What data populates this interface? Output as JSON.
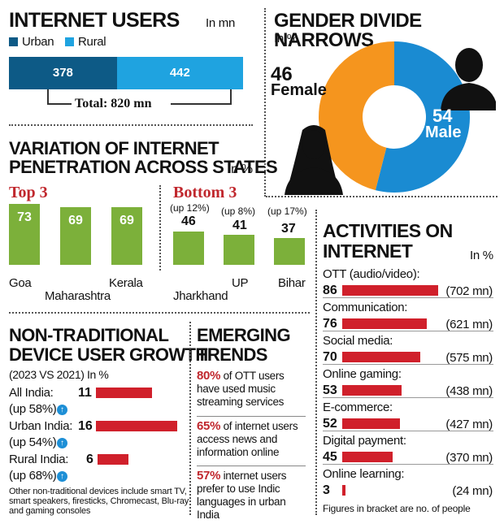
{
  "colors": {
    "urban": "#0d5a86",
    "rural": "#1fa3e0",
    "female": "#f5951e",
    "male": "#1a8bd2",
    "green": "#7cb03a",
    "red": "#d0202b",
    "title_red": "#c0272d"
  },
  "internet_users": {
    "title": "INTERNET USERS",
    "unit": "In mn",
    "legend_urban": "Urban",
    "legend_rural": "Rural",
    "urban": "378",
    "rural": "442",
    "total": "Total: 820 mn"
  },
  "gender": {
    "title": "GENDER DIVIDE NARROWS",
    "unit": "In %",
    "female_value": "46",
    "female_label": "Female",
    "male_value": "54",
    "male_label": "Male"
  },
  "states": {
    "title_line1": "VARIATION OF INTERNET",
    "title_line2": "PENETRATION ACROSS STATES",
    "unit": "In %",
    "top_title": "Top 3",
    "bottom_title": "Bottom 3",
    "top": [
      {
        "name": "Goa",
        "value": "73"
      },
      {
        "name": "Maharashtra",
        "value": "69"
      },
      {
        "name": "Kerala",
        "value": "69"
      }
    ],
    "bottom": [
      {
        "name": "Jharkhand",
        "value": "46",
        "change": "(up 12%)"
      },
      {
        "name": "UP",
        "value": "41",
        "change": "(up 8%)"
      },
      {
        "name": "Bihar",
        "value": "37",
        "change": "(up 17%)"
      }
    ]
  },
  "devices": {
    "title_line1": "NON-TRADITIONAL",
    "title_line2": "DEVICE USER GROWTH",
    "subtitle": "(2023 VS 2021) In %",
    "rows": [
      {
        "label": "All India:",
        "value": "11",
        "change": "(up 58%)"
      },
      {
        "label": "Urban India:",
        "value": "16",
        "change": "(up 54%)"
      },
      {
        "label": "Rural India:",
        "value": "6",
        "change": "(up 68%)"
      }
    ],
    "note": "Other non-traditional devices include smart TV, smart speakers, firesticks, Chromecast, Blu-ray and gaming consoles"
  },
  "trends": {
    "title_line1": "EMERGING",
    "title_line2": "TRENDS",
    "items": [
      {
        "pct": "80%",
        "text": "of OTT users have used music streaming services"
      },
      {
        "pct": "65%",
        "text": "of internet users access news and information online"
      },
      {
        "pct": "57%",
        "text": "internet users prefer to use Indic languages in urban India"
      }
    ]
  },
  "activities": {
    "title_line1": "ACTIVITIES ON",
    "title_line2": "INTERNET",
    "unit": "In %",
    "rows": [
      {
        "label": "OTT (audio/video):",
        "value": "86",
        "users": "(702 mn)"
      },
      {
        "label": "Communication:",
        "value": "76",
        "users": "(621 mn)"
      },
      {
        "label": "Social media:",
        "value": "70",
        "users": "(575 mn)"
      },
      {
        "label": "Online gaming:",
        "value": "53",
        "users": "(438 mn)"
      },
      {
        "label": "E-commerce:",
        "value": "52",
        "users": "(427 mn)"
      },
      {
        "label": "Digital payment:",
        "value": "45",
        "users": "(370 mn)"
      },
      {
        "label": "Online learning:",
        "value": "3",
        "users": "(24 mn)"
      }
    ],
    "note": "Figures in bracket are no. of people"
  },
  "chart_data": [
    {
      "type": "bar",
      "categories": [
        "Urban",
        "Rural"
      ],
      "values": [
        378,
        442
      ],
      "title": "INTERNET USERS"
    },
    {
      "type": "pie",
      "categories": [
        "Female",
        "Male"
      ],
      "values": [
        46,
        54
      ],
      "title": "GENDER DIVIDE NARROWS"
    },
    {
      "type": "bar",
      "categories": [
        "Goa",
        "Maharashtra",
        "Kerala"
      ],
      "values": [
        73,
        69,
        69
      ],
      "title": "Top 3"
    },
    {
      "type": "bar",
      "categories": [
        "Jharkhand",
        "UP",
        "Bihar"
      ],
      "values": [
        46,
        41,
        37
      ],
      "title": "Bottom 3"
    },
    {
      "type": "bar",
      "categories": [
        "All India",
        "Urban India",
        "Rural India"
      ],
      "values": [
        11,
        16,
        6
      ],
      "title": "NON-TRADITIONAL DEVICE USER GROWTH"
    },
    {
      "type": "bar",
      "categories": [
        "OTT (audio/video)",
        "Communication",
        "Social media",
        "Online gaming",
        "E-commerce",
        "Digital payment",
        "Online learning"
      ],
      "values": [
        86,
        76,
        70,
        53,
        52,
        45,
        3
      ],
      "title": "ACTIVITIES ON INTERNET"
    }
  ]
}
